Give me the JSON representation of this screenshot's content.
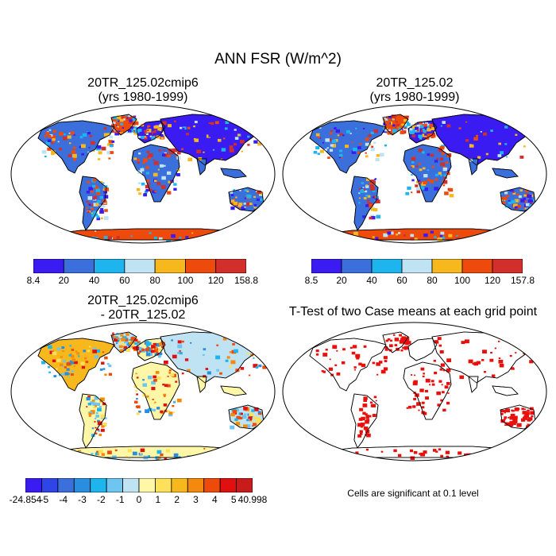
{
  "main_title": "ANN FSR (W/m^2)",
  "panels": [
    {
      "title_line1": "20TR_125.02cmip6",
      "title_line2": "(yrs 1980-1999)",
      "colorbar": {
        "labels": [
          "8.4",
          "20",
          "40",
          "60",
          "80",
          "100",
          "120",
          "158.8"
        ]
      }
    },
    {
      "title_line1": "20TR_125.02",
      "title_line2": "(yrs 1980-1999)",
      "colorbar": {
        "labels": [
          "8.5",
          "20",
          "40",
          "60",
          "80",
          "100",
          "120",
          "157.8"
        ]
      }
    },
    {
      "title_line1": "20TR_125.02cmip6",
      "title_line2": "- 20TR_125.02",
      "colorbar": {
        "labels": [
          "-24.854",
          "-5",
          "-4",
          "-3",
          "-2",
          "-1",
          "0",
          "1",
          "2",
          "3",
          "4",
          "5",
          "40.998"
        ]
      }
    },
    {
      "title_line1": "T-Test of two Case means at each grid point",
      "title_line2": ""
    }
  ],
  "footnote": "Cells are significant at 0.1 level",
  "colors": {
    "abs_palette": [
      "#3a1cf2",
      "#3a6fdc",
      "#1eb4ee",
      "#bfe3f3",
      "#f7b81e",
      "#ee4a0c",
      "#d22e2a"
    ],
    "diff_palette": [
      "#3a1cf2",
      "#2f45e8",
      "#3a6fdc",
      "#2a8ee0",
      "#1eb4ee",
      "#6ec6f0",
      "#bfe3f3",
      "#fff7a8",
      "#ffe05a",
      "#f7b81e",
      "#f38a0e",
      "#ee4a0c",
      "#e01010",
      "#c81c1c"
    ],
    "ocean": "#ffffff",
    "significant": "#e8100c"
  }
}
